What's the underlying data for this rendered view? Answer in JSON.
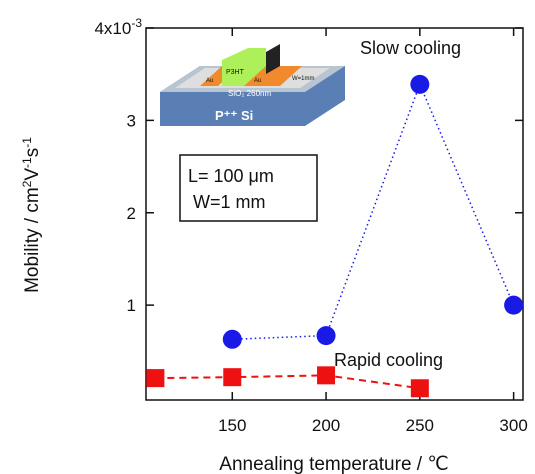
{
  "chart_data": {
    "type": "line",
    "xlabel": "Annealing temperature /  ℃",
    "ylabel_parts": [
      "Mobility / cm",
      "2",
      "V",
      "-1",
      "s",
      "-1"
    ],
    "xlim": [
      104,
      305
    ],
    "xticks": [
      150,
      200,
      250,
      300
    ],
    "ylim": [
      0,
      4
    ],
    "yticks": [
      {
        "value": 4,
        "label": "4x10"
      },
      3,
      2,
      1
    ],
    "ytick_exponent": "-3",
    "series": [
      {
        "name": "Slow cooling",
        "color": "#1a1ae6",
        "marker": "circle",
        "linestyle": "dotted",
        "x": [
          150,
          200,
          250,
          300
        ],
        "values": [
          0.63,
          0.67,
          3.39,
          1.0
        ]
      },
      {
        "name": "Rapid cooling",
        "color": "#ee1111",
        "marker": "square",
        "linestyle": "dashed",
        "x": [
          109,
          150,
          200,
          250
        ],
        "values": [
          0.21,
          0.22,
          0.24,
          0.1
        ]
      }
    ],
    "box_lines": [
      "L= 100  μm",
      "W=1 mm"
    ],
    "inset": {
      "electrode": "Au",
      "semiconductor": "P3HT",
      "oxide": "SiO₂ 260nm",
      "width": "W=1mm",
      "substrate": "P⁺⁺ Si"
    }
  }
}
